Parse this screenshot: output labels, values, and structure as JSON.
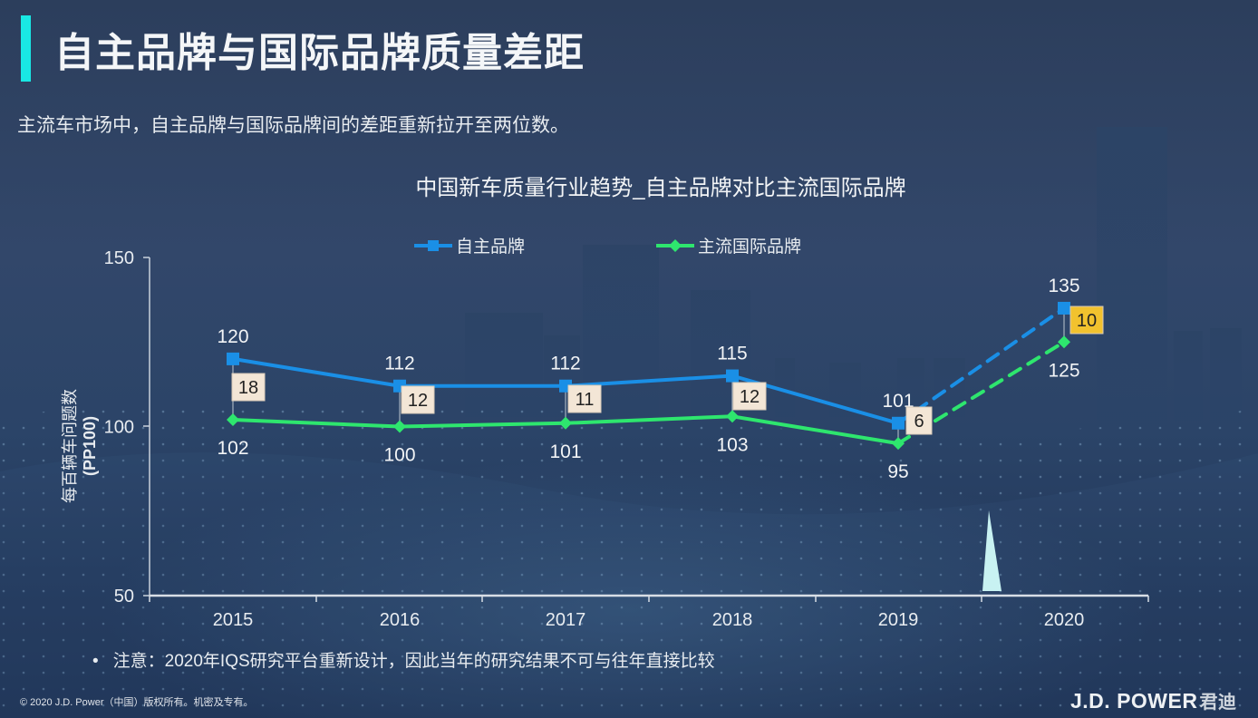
{
  "slide": {
    "title": "自主品牌与国际品牌质量差距",
    "subtitle": "主流车市场中，自主品牌与国际品牌间的差距重新拉开至两位数。",
    "note_bullet": "•",
    "note": "注意：2020年IQS研究平台重新设计，因此当年的研究结果不可与往年直接比较",
    "copyright": "© 2020 J.D. Power（中国）版权所有。机密及专有。",
    "brand": "J.D. POWER",
    "brand_cn": "君迪",
    "accent_color": "#19e8e4"
  },
  "chart_data": {
    "type": "line",
    "title": "中国新车质量行业趋势_自主品牌对比主流国际品牌",
    "xlabel": "",
    "ylabel": "每百辆车问题数",
    "ylabel_unit": "(PP100)",
    "categories": [
      "2015",
      "2016",
      "2017",
      "2018",
      "2019",
      "2020"
    ],
    "yticks": [
      "150",
      "100",
      "50"
    ],
    "ylim": [
      50,
      150
    ],
    "grid": false,
    "legend_position": "top",
    "series": [
      {
        "name": "自主品牌",
        "color": "#1a8fe6",
        "marker": "square",
        "values": [
          120,
          112,
          112,
          115,
          101,
          135
        ],
        "labels": [
          "120",
          "112",
          "112",
          "115",
          "101",
          "135"
        ],
        "dashed_last_segment": true
      },
      {
        "name": "主流国际品牌",
        "color": "#2ee66e",
        "marker": "diamond",
        "values": [
          102,
          100,
          101,
          103,
          95,
          125
        ],
        "labels": [
          "102",
          "100",
          "101",
          "103",
          "95",
          "125"
        ],
        "dashed_last_segment": true
      }
    ],
    "gap_labels": [
      "18",
      "12",
      "11",
      "12",
      "6",
      "10"
    ],
    "gap_label_colors": [
      "#f3e6d6",
      "#f3e6d6",
      "#f3e6d6",
      "#f3e6d6",
      "#f3e6d6",
      "#f2c22e"
    ],
    "annotations": [
      "Dashed segment 2019→2020 indicates platform redesign; triangle marker separates 2019 and 2020"
    ]
  }
}
